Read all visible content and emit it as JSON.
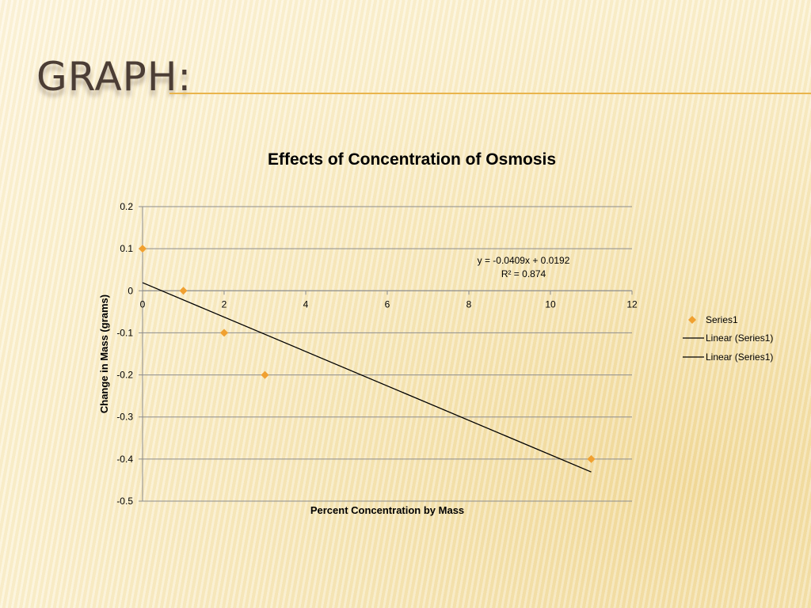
{
  "slide": {
    "title": "GRAPH:",
    "accent": "#E9B44C"
  },
  "chart_data": {
    "type": "scatter",
    "title": "Effects of Concentration of Osmosis",
    "xlabel": "Percent Concentration by Mass",
    "ylabel": "Change in Mass (grams)",
    "xlim": [
      0,
      12
    ],
    "ylim": [
      -0.5,
      0.2
    ],
    "x_ticks": [
      "0",
      "2",
      "4",
      "6",
      "8",
      "10",
      "12"
    ],
    "y_ticks": [
      "0.2",
      "0.1",
      "0",
      "-0.1",
      "-0.2",
      "-0.3",
      "-0.4",
      "-0.5"
    ],
    "grid": "horizontal",
    "legend": "right",
    "series": [
      {
        "name": "Series1",
        "color": "#F0A030",
        "marker": "diamond",
        "points": [
          [
            0,
            0.1
          ],
          [
            1,
            0
          ],
          [
            2,
            -0.1
          ],
          [
            3,
            -0.2
          ],
          [
            11,
            -0.4
          ]
        ]
      }
    ],
    "trendline": {
      "type": "linear",
      "slope": -0.0409,
      "intercept": 0.0192,
      "x_range": [
        0,
        11
      ],
      "color": "#000000",
      "equation": "y = -0.0409x + 0.0192",
      "r_squared": "R² = 0.874"
    },
    "legend_entries": [
      "Series1",
      "Linear (Series1)",
      "Linear (Series1)"
    ]
  }
}
